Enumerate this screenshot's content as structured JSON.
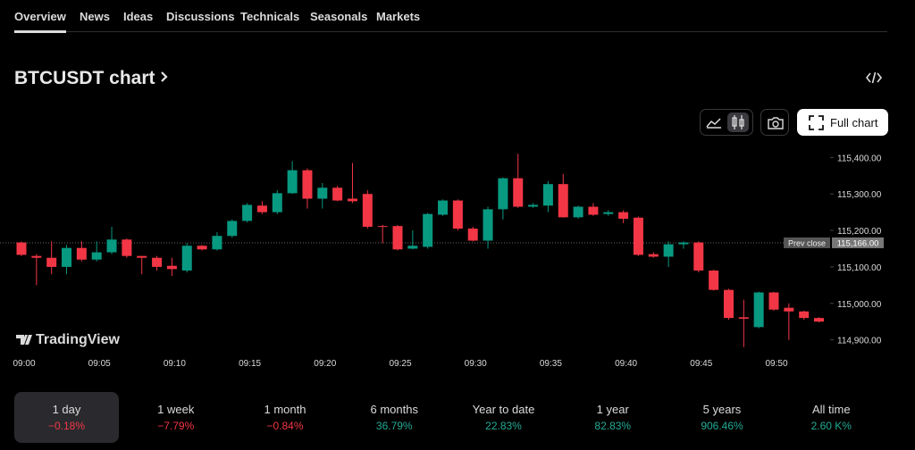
{
  "tabs": [
    "Overview",
    "News",
    "Ideas",
    "Discussions",
    "Technicals",
    "Seasonals",
    "Markets"
  ],
  "title": "BTCUSDT chart",
  "full_chart": "Full chart",
  "brand": "TradingView",
  "periods": [
    {
      "label": "1 day",
      "change": "−0.18%"
    },
    {
      "label": "1 week",
      "change": "−7.79%"
    },
    {
      "label": "1 month",
      "change": "−0.84%"
    },
    {
      "label": "6 months",
      "change": "36.79%"
    },
    {
      "label": "Year to date",
      "change": "22.83%"
    },
    {
      "label": "1 year",
      "change": "82.83%"
    },
    {
      "label": "5 years",
      "change": "906.46%"
    },
    {
      "label": "All time",
      "change": "2.60 K%"
    }
  ],
  "chart_data": {
    "type": "candlestick",
    "up_color": "#089981",
    "down_color": "#f23645",
    "categories": [
      "09:00",
      null,
      null,
      null,
      null,
      "09:05",
      null,
      null,
      null,
      null,
      "09:10",
      null,
      null,
      null,
      null,
      "09:15",
      null,
      null,
      null,
      null,
      "09:20",
      null,
      null,
      null,
      null,
      "09:25",
      null,
      null,
      null,
      null,
      "09:30",
      null,
      null,
      null,
      null,
      "09:35",
      null,
      null,
      null,
      null,
      "09:40",
      null,
      null,
      null,
      null,
      "09:45",
      null,
      null,
      null,
      null,
      "09:50",
      null,
      null,
      null
    ],
    "open": [
      115167,
      115130,
      115125,
      115100,
      115152,
      115120,
      115140,
      115175,
      115130,
      115125,
      115103,
      115090,
      115158,
      115148,
      115185,
      115226,
      115268,
      115250,
      115302,
      115365,
      115287,
      115317,
      115287,
      115300,
      115212,
      115212,
      115150,
      115155,
      115243,
      115282,
      115205,
      115172,
      115258,
      115343,
      115265,
      115268,
      115327,
      115236,
      115265,
      115245,
      115250,
      115235,
      115135,
      115128,
      115162,
      115167,
      115090,
      115037,
      114962,
      114935,
      115030,
      114988,
      114978,
      114960
    ],
    "high": [
      115170,
      115135,
      115170,
      115160,
      115170,
      115170,
      115210,
      115178,
      115130,
      115130,
      115125,
      115165,
      115160,
      115195,
      115230,
      115275,
      115280,
      115310,
      115390,
      115370,
      115330,
      115322,
      115385,
      115310,
      115215,
      115215,
      115200,
      115248,
      115285,
      115285,
      115210,
      115265,
      115345,
      115410,
      115275,
      115335,
      115355,
      115268,
      115275,
      115255,
      115255,
      115238,
      115140,
      115170,
      115170,
      115170,
      115092,
      115040,
      115010,
      115032,
      115032,
      115000,
      114980,
      114962
    ],
    "low": [
      115130,
      115050,
      115080,
      115080,
      115115,
      115115,
      115135,
      115125,
      115080,
      115090,
      115075,
      115085,
      115145,
      115145,
      115180,
      115222,
      115245,
      115245,
      115300,
      115260,
      115260,
      115280,
      115275,
      115205,
      115165,
      115145,
      115148,
      115150,
      115240,
      115200,
      115170,
      115150,
      115230,
      115262,
      115262,
      115250,
      115235,
      115232,
      115240,
      115240,
      115220,
      115130,
      115125,
      115100,
      115150,
      115085,
      115035,
      114955,
      114880,
      114932,
      114980,
      114900,
      114955,
      114948
    ],
    "close": [
      115133,
      115125,
      115100,
      115152,
      115120,
      115140,
      115175,
      115130,
      115125,
      115100,
      115094,
      115158,
      115148,
      115185,
      115226,
      115270,
      115250,
      115302,
      115365,
      115287,
      115317,
      115282,
      115280,
      115210,
      115210,
      115148,
      115158,
      115245,
      115282,
      115205,
      115172,
      115258,
      115343,
      115265,
      115270,
      115327,
      115236,
      115265,
      115243,
      115250,
      115232,
      115133,
      115128,
      115162,
      115167,
      115090,
      115037,
      114960,
      114958,
      115030,
      114983,
      114978,
      114960,
      114950
    ],
    "ylim": [
      114860,
      115440
    ],
    "yticks": [
      {
        "value": 114900,
        "label": "114,900.00"
      },
      {
        "value": 115000,
        "label": "115,000.00"
      },
      {
        "value": 115100,
        "label": "115,100.00"
      },
      {
        "value": 115200,
        "label": "115,200.00"
      },
      {
        "value": 115300,
        "label": "115,300.00"
      },
      {
        "value": 115400,
        "label": "115,400.00"
      }
    ],
    "prev_close": {
      "label": "Prev close",
      "value": 115166,
      "value_label": "115,166.00"
    }
  }
}
